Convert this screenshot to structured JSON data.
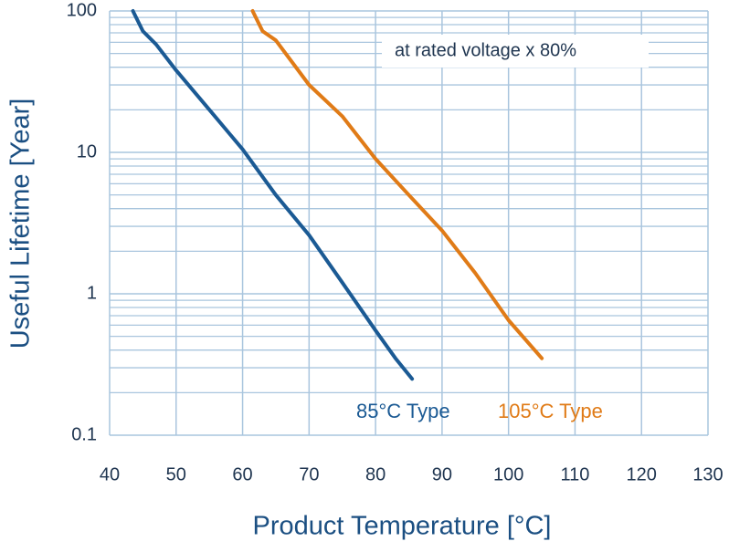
{
  "chart_data": {
    "type": "line",
    "x_label": "Product Temperature [°C]",
    "y_label": "Useful Lifetime [Year]",
    "annotation": "at rated voltage x 80%",
    "log_y": true,
    "grid": true,
    "xlim": [
      40,
      130
    ],
    "xticks": [
      40,
      50,
      60,
      70,
      80,
      90,
      100,
      110,
      120,
      130
    ],
    "ylim": [
      0.1,
      100
    ],
    "yticks": [
      0.1,
      1,
      10,
      100
    ],
    "yminorticks": [
      0.2,
      0.3,
      0.4,
      0.5,
      0.6,
      0.7,
      0.8,
      0.9,
      2,
      3,
      4,
      5,
      6,
      7,
      8,
      9,
      20,
      30,
      40,
      50,
      60,
      70,
      80,
      90
    ],
    "series": [
      {
        "name": "85°C Type",
        "color": "#1b5a94",
        "x": [
          43.5,
          45,
          47,
          50,
          55,
          60,
          65,
          70,
          75,
          80,
          83,
          85.5
        ],
        "values": [
          100,
          72,
          58,
          38,
          20,
          10.5,
          5,
          2.6,
          1.2,
          0.55,
          0.35,
          0.25
        ]
      },
      {
        "name": "105°C Type",
        "color": "#e07b17",
        "x": [
          61.5,
          63,
          65,
          70,
          75,
          80,
          85,
          90,
          95,
          100,
          105
        ],
        "values": [
          100,
          72,
          62,
          30,
          18,
          9,
          5,
          2.8,
          1.4,
          0.65,
          0.35
        ]
      }
    ]
  }
}
